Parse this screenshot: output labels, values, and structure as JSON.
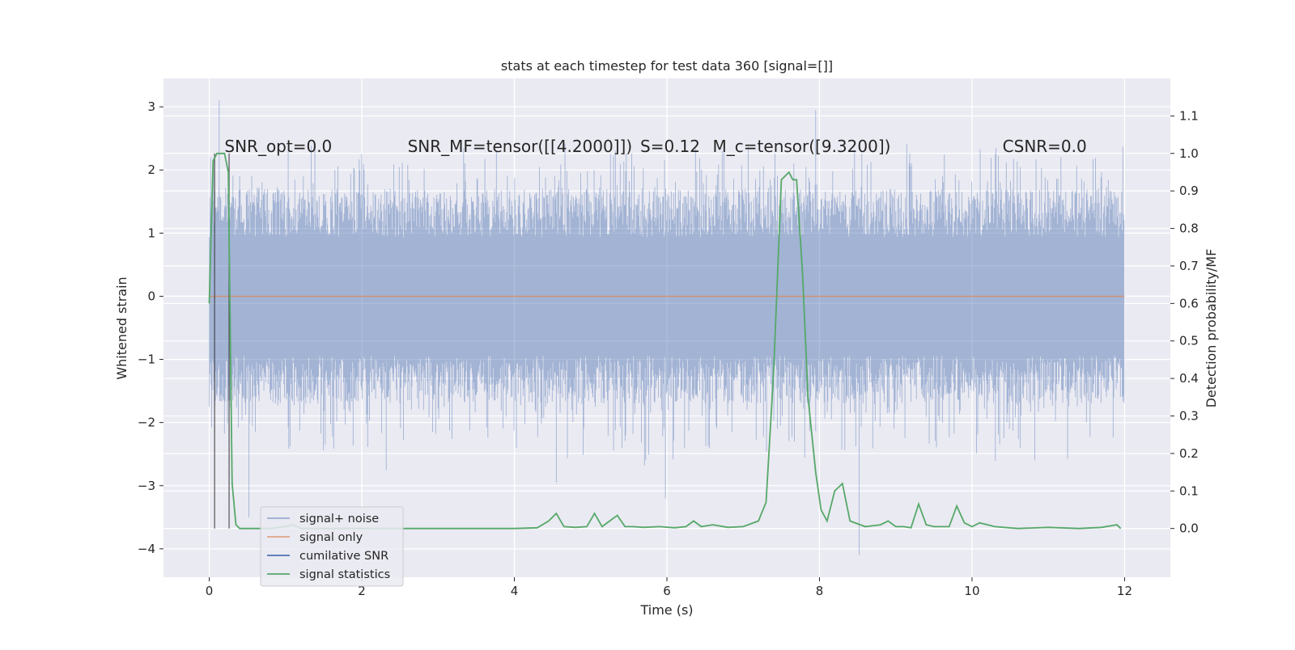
{
  "chart_data": {
    "type": "line",
    "title": "stats at each timestep for test data 360 [signal=[]]",
    "xlabel": "Time (s)",
    "ylabel_left": "Whitened strain",
    "ylabel_right": "Detection probability/MF",
    "xlim": [
      -0.6,
      12.6
    ],
    "ylim_left": [
      -4.45,
      3.45
    ],
    "ylim_right": [
      -0.13,
      1.2
    ],
    "x_ticks": [
      0,
      2,
      4,
      6,
      8,
      10,
      12
    ],
    "x_tick_labels": [
      "0",
      "2",
      "4",
      "6",
      "8",
      "10",
      "12"
    ],
    "y_ticks_left": [
      3,
      2,
      1,
      0,
      -1,
      -2,
      -3,
      -4
    ],
    "y_tick_labels_left": [
      "3",
      "2",
      "1",
      "0",
      "−1",
      "−2",
      "−3",
      "−4"
    ],
    "y_ticks_right": [
      1.1,
      1.0,
      0.9,
      0.8,
      0.7,
      0.6,
      0.5,
      0.4,
      0.3,
      0.2,
      0.1,
      0.0
    ],
    "y_tick_labels_right": [
      "1.1",
      "1.0",
      "0.9",
      "0.8",
      "0.7",
      "0.6",
      "0.5",
      "0.4",
      "0.3",
      "0.2",
      "0.1",
      "0.0"
    ],
    "grid": true,
    "legend_position": "lower-left",
    "annotations": [
      {
        "text": "SNR_opt=0.0",
        "x": 0.2,
        "y_right": 1.0
      },
      {
        "text": "SNR_MF=tensor([[4.2000]])",
        "x": 2.6,
        "y_right": 1.0
      },
      {
        "text": "S=0.12",
        "x": 5.65,
        "y_right": 1.0
      },
      {
        "text": "M_c=tensor([9.3200])",
        "x": 6.6,
        "y_right": 1.0
      },
      {
        "text": "CSNR=0.0",
        "x": 10.4,
        "y_right": 1.0
      }
    ],
    "vertical_markers_x": [
      0.07,
      0.26
    ],
    "series": [
      {
        "name": "signal+ noise",
        "color": "#4c72b0",
        "axis": "left",
        "envelope": {
          "x_range": [
            0,
            12
          ],
          "typical_min": -1.7,
          "typical_max": 1.7,
          "peak_max": 3.1,
          "peak_min": -4.1
        }
      },
      {
        "name": "signal only",
        "color": "#dd8452",
        "axis": "left",
        "x": [
          0,
          12
        ],
        "y": [
          0,
          0
        ]
      },
      {
        "name": "cumilative SNR",
        "color": "#4c72b0",
        "axis": "left",
        "x": [],
        "y": []
      },
      {
        "name": "signal statistics",
        "color": "#55a868",
        "axis": "right",
        "x": [
          0,
          0.05,
          0.1,
          0.2,
          0.25,
          0.3,
          0.35,
          0.4,
          0.45,
          0.5,
          0.6,
          0.8,
          1.0,
          1.1,
          1.2,
          1.5,
          2.0,
          2.5,
          3.0,
          3.5,
          4.0,
          4.3,
          4.45,
          4.55,
          4.65,
          4.8,
          4.95,
          5.05,
          5.15,
          5.25,
          5.35,
          5.45,
          5.55,
          5.7,
          5.9,
          6.1,
          6.25,
          6.35,
          6.45,
          6.6,
          6.8,
          7.0,
          7.2,
          7.3,
          7.4,
          7.5,
          7.6,
          7.65,
          7.7,
          7.78,
          7.85,
          7.95,
          8.02,
          8.1,
          8.2,
          8.3,
          8.4,
          8.6,
          8.8,
          8.9,
          9.0,
          9.1,
          9.2,
          9.3,
          9.4,
          9.5,
          9.7,
          9.8,
          9.9,
          10.0,
          10.1,
          10.3,
          10.6,
          11.0,
          11.4,
          11.7,
          11.9,
          11.95
        ],
        "y": [
          0.6,
          0.98,
          1.0,
          1.0,
          0.95,
          0.12,
          0.01,
          0.0,
          0.0,
          0.0,
          0.0,
          0.0,
          0.005,
          0.01,
          0.0,
          0.0,
          0.0,
          0.0,
          0.0,
          0.0,
          0.0,
          0.002,
          0.02,
          0.04,
          0.005,
          0.003,
          0.005,
          0.04,
          0.005,
          0.02,
          0.035,
          0.005,
          0.005,
          0.003,
          0.005,
          0.002,
          0.005,
          0.02,
          0.005,
          0.01,
          0.003,
          0.005,
          0.02,
          0.07,
          0.42,
          0.93,
          0.95,
          0.93,
          0.93,
          0.67,
          0.35,
          0.15,
          0.05,
          0.02,
          0.1,
          0.12,
          0.02,
          0.005,
          0.01,
          0.02,
          0.005,
          0.005,
          0.002,
          0.065,
          0.01,
          0.005,
          0.005,
          0.06,
          0.015,
          0.005,
          0.015,
          0.005,
          0.0,
          0.003,
          0.0,
          0.003,
          0.01,
          0.0
        ]
      }
    ]
  }
}
